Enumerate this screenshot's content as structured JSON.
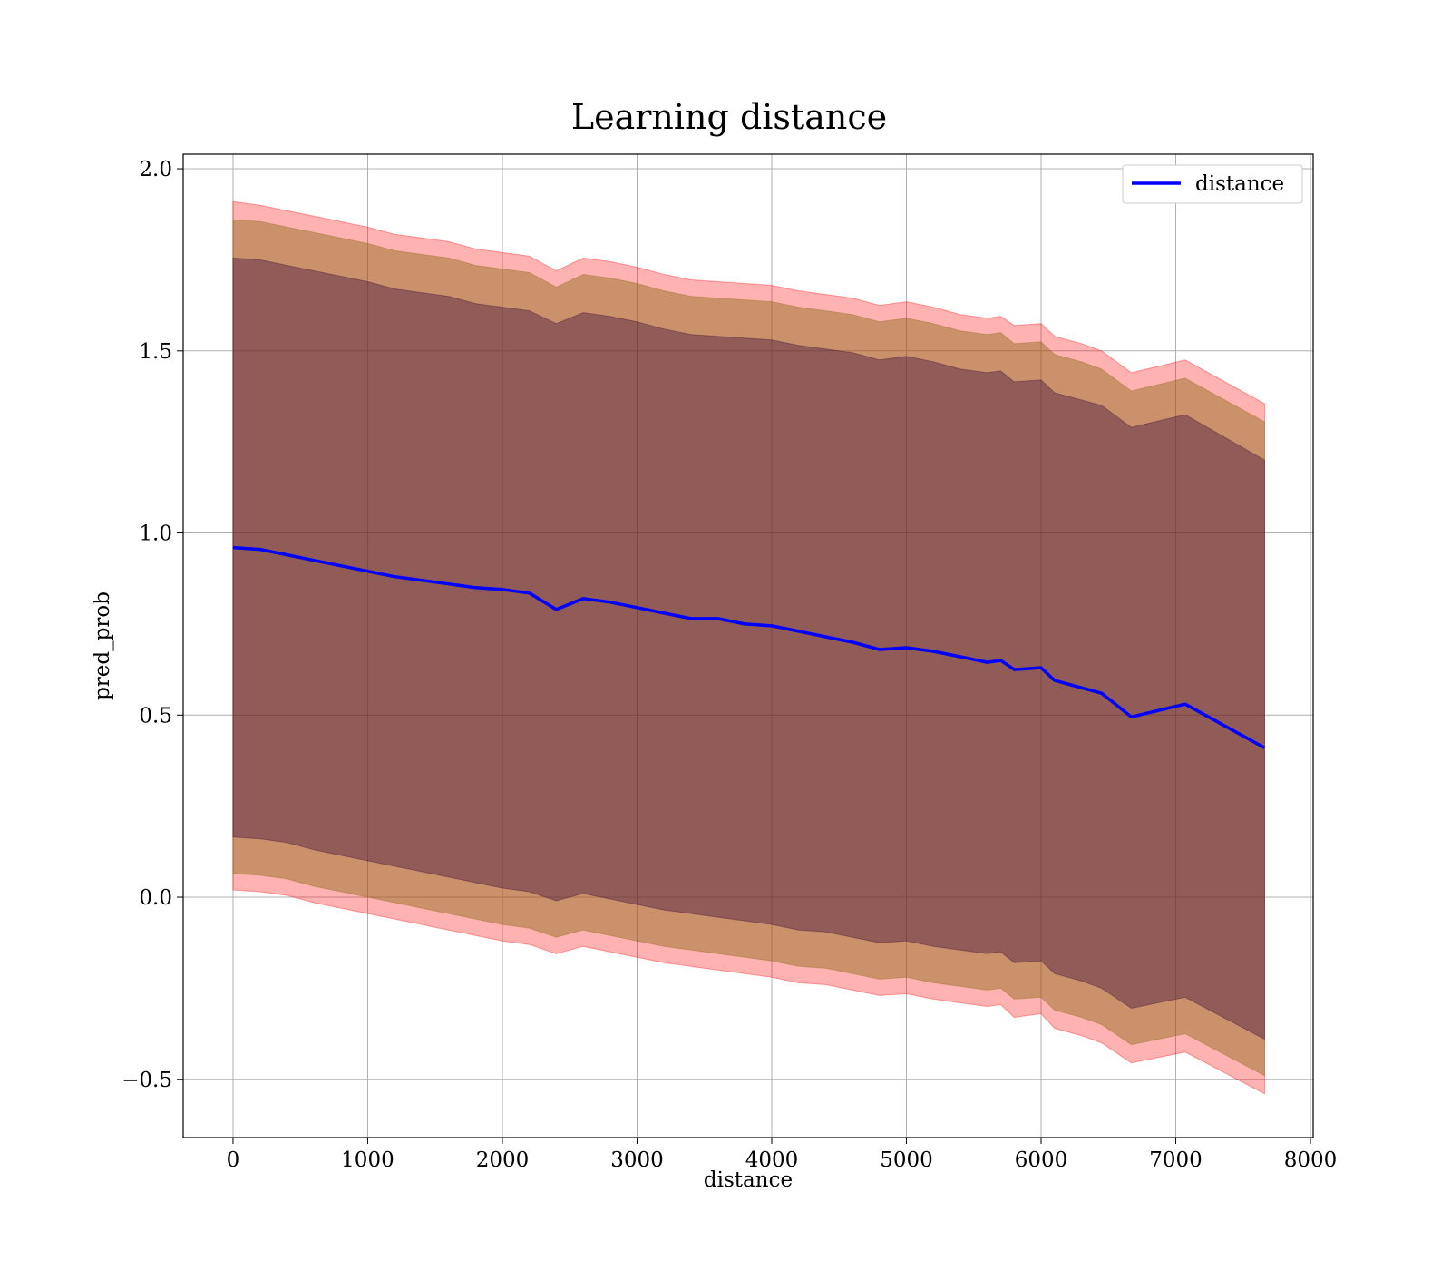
{
  "chart_data": {
    "type": "line",
    "title": "Learning distance",
    "xlabel": "distance",
    "ylabel": "pred_prob",
    "xlim": [
      -370,
      8020
    ],
    "ylim": [
      -0.66,
      2.04
    ],
    "xticks": [
      0,
      1000,
      2000,
      3000,
      4000,
      5000,
      6000,
      7000,
      8000
    ],
    "xtick_labels": [
      "0",
      "1000",
      "2000",
      "3000",
      "4000",
      "5000",
      "6000",
      "7000",
      "8000"
    ],
    "yticks": [
      -0.5,
      0.0,
      0.5,
      1.0,
      1.5,
      2.0
    ],
    "ytick_labels": [
      "−0.5",
      "0.0",
      "0.5",
      "1.0",
      "1.5",
      "2.0"
    ],
    "grid": true,
    "legend_position": "top-right",
    "colors": {
      "line": "#0000ff",
      "band_outer": "#ff0000",
      "band_middle": "#8b6914",
      "band_inner": "#3a0a3a"
    },
    "series": [
      {
        "name": "distance",
        "x": [
          0,
          200,
          400,
          600,
          800,
          1000,
          1200,
          1400,
          1600,
          1800,
          2000,
          2200,
          2400,
          2600,
          2800,
          3000,
          3200,
          3400,
          3600,
          3800,
          4000,
          4200,
          4400,
          4600,
          4800,
          5000,
          5200,
          5400,
          5600,
          5700,
          5800,
          6000,
          6100,
          6300,
          6450,
          6670,
          7070,
          7660
        ],
        "y": [
          0.96,
          0.955,
          0.94,
          0.925,
          0.91,
          0.895,
          0.88,
          0.87,
          0.86,
          0.85,
          0.845,
          0.835,
          0.79,
          0.82,
          0.81,
          0.795,
          0.78,
          0.765,
          0.765,
          0.75,
          0.745,
          0.73,
          0.715,
          0.7,
          0.68,
          0.685,
          0.675,
          0.66,
          0.645,
          0.65,
          0.625,
          0.63,
          0.595,
          0.575,
          0.56,
          0.495,
          0.53,
          0.41
        ]
      }
    ],
    "bands": [
      {
        "label": "outer",
        "lower": [
          0.02,
          0.015,
          0.005,
          -0.015,
          -0.03,
          -0.045,
          -0.06,
          -0.075,
          -0.09,
          -0.105,
          -0.12,
          -0.13,
          -0.155,
          -0.135,
          -0.15,
          -0.165,
          -0.18,
          -0.19,
          -0.2,
          -0.21,
          -0.22,
          -0.235,
          -0.24,
          -0.255,
          -0.27,
          -0.265,
          -0.28,
          -0.29,
          -0.3,
          -0.295,
          -0.33,
          -0.32,
          -0.36,
          -0.38,
          -0.4,
          -0.455,
          -0.425,
          -0.54
        ],
        "upper": [
          1.91,
          1.9,
          1.885,
          1.87,
          1.855,
          1.84,
          1.82,
          1.81,
          1.8,
          1.78,
          1.77,
          1.76,
          1.72,
          1.755,
          1.745,
          1.73,
          1.71,
          1.695,
          1.69,
          1.685,
          1.68,
          1.665,
          1.655,
          1.645,
          1.625,
          1.635,
          1.62,
          1.6,
          1.59,
          1.595,
          1.57,
          1.575,
          1.54,
          1.52,
          1.5,
          1.44,
          1.475,
          1.355
        ]
      },
      {
        "label": "middle",
        "lower": [
          0.065,
          0.06,
          0.05,
          0.03,
          0.015,
          0.0,
          -0.015,
          -0.03,
          -0.045,
          -0.06,
          -0.075,
          -0.085,
          -0.11,
          -0.09,
          -0.105,
          -0.12,
          -0.135,
          -0.145,
          -0.155,
          -0.165,
          -0.175,
          -0.19,
          -0.195,
          -0.21,
          -0.225,
          -0.22,
          -0.235,
          -0.245,
          -0.255,
          -0.25,
          -0.28,
          -0.275,
          -0.31,
          -0.33,
          -0.35,
          -0.405,
          -0.375,
          -0.49
        ],
        "upper": [
          1.86,
          1.855,
          1.84,
          1.825,
          1.81,
          1.795,
          1.775,
          1.765,
          1.755,
          1.735,
          1.725,
          1.715,
          1.675,
          1.71,
          1.7,
          1.685,
          1.665,
          1.65,
          1.645,
          1.64,
          1.635,
          1.62,
          1.61,
          1.6,
          1.58,
          1.59,
          1.575,
          1.555,
          1.545,
          1.55,
          1.52,
          1.525,
          1.49,
          1.47,
          1.45,
          1.39,
          1.425,
          1.305
        ]
      },
      {
        "label": "inner",
        "lower": [
          0.165,
          0.16,
          0.15,
          0.13,
          0.115,
          0.1,
          0.085,
          0.07,
          0.055,
          0.04,
          0.025,
          0.015,
          -0.01,
          0.01,
          -0.005,
          -0.02,
          -0.035,
          -0.045,
          -0.055,
          -0.065,
          -0.075,
          -0.09,
          -0.095,
          -0.11,
          -0.125,
          -0.12,
          -0.135,
          -0.145,
          -0.155,
          -0.15,
          -0.18,
          -0.175,
          -0.21,
          -0.23,
          -0.25,
          -0.305,
          -0.275,
          -0.39
        ],
        "upper": [
          1.755,
          1.75,
          1.735,
          1.72,
          1.705,
          1.69,
          1.67,
          1.66,
          1.65,
          1.63,
          1.62,
          1.61,
          1.575,
          1.605,
          1.595,
          1.58,
          1.56,
          1.545,
          1.54,
          1.535,
          1.53,
          1.515,
          1.505,
          1.495,
          1.475,
          1.485,
          1.47,
          1.45,
          1.44,
          1.445,
          1.415,
          1.42,
          1.385,
          1.365,
          1.35,
          1.29,
          1.325,
          1.2
        ]
      }
    ]
  }
}
